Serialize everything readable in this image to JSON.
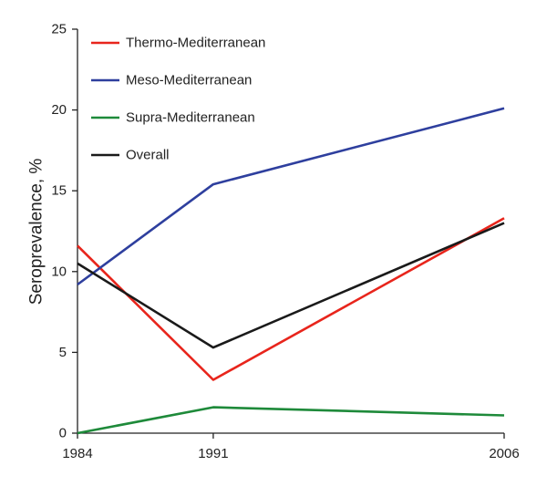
{
  "chart_data": {
    "type": "line",
    "title": "",
    "xlabel": "",
    "ylabel": "Seroprevalence, %",
    "x": [
      "1984",
      "1991",
      "2006"
    ],
    "ylim": [
      0,
      25
    ],
    "yticks": [
      "0",
      "5",
      "10",
      "15",
      "20",
      "25"
    ],
    "grid": false,
    "legend_position": "top-left",
    "series": [
      {
        "name": "Thermo-Mediterranean",
        "color": "#e8251c",
        "values": [
          11.6,
          3.3,
          13.3
        ]
      },
      {
        "name": "Meso-Mediterranean",
        "color": "#2e3f9e",
        "values": [
          9.2,
          15.4,
          20.1
        ]
      },
      {
        "name": "Supra-Mediterranean",
        "color": "#1e8a3a",
        "values": [
          0.0,
          1.6,
          1.1
        ]
      },
      {
        "name": "Overall",
        "color": "#1a1a1a",
        "values": [
          10.5,
          5.3,
          13.0
        ]
      }
    ]
  }
}
